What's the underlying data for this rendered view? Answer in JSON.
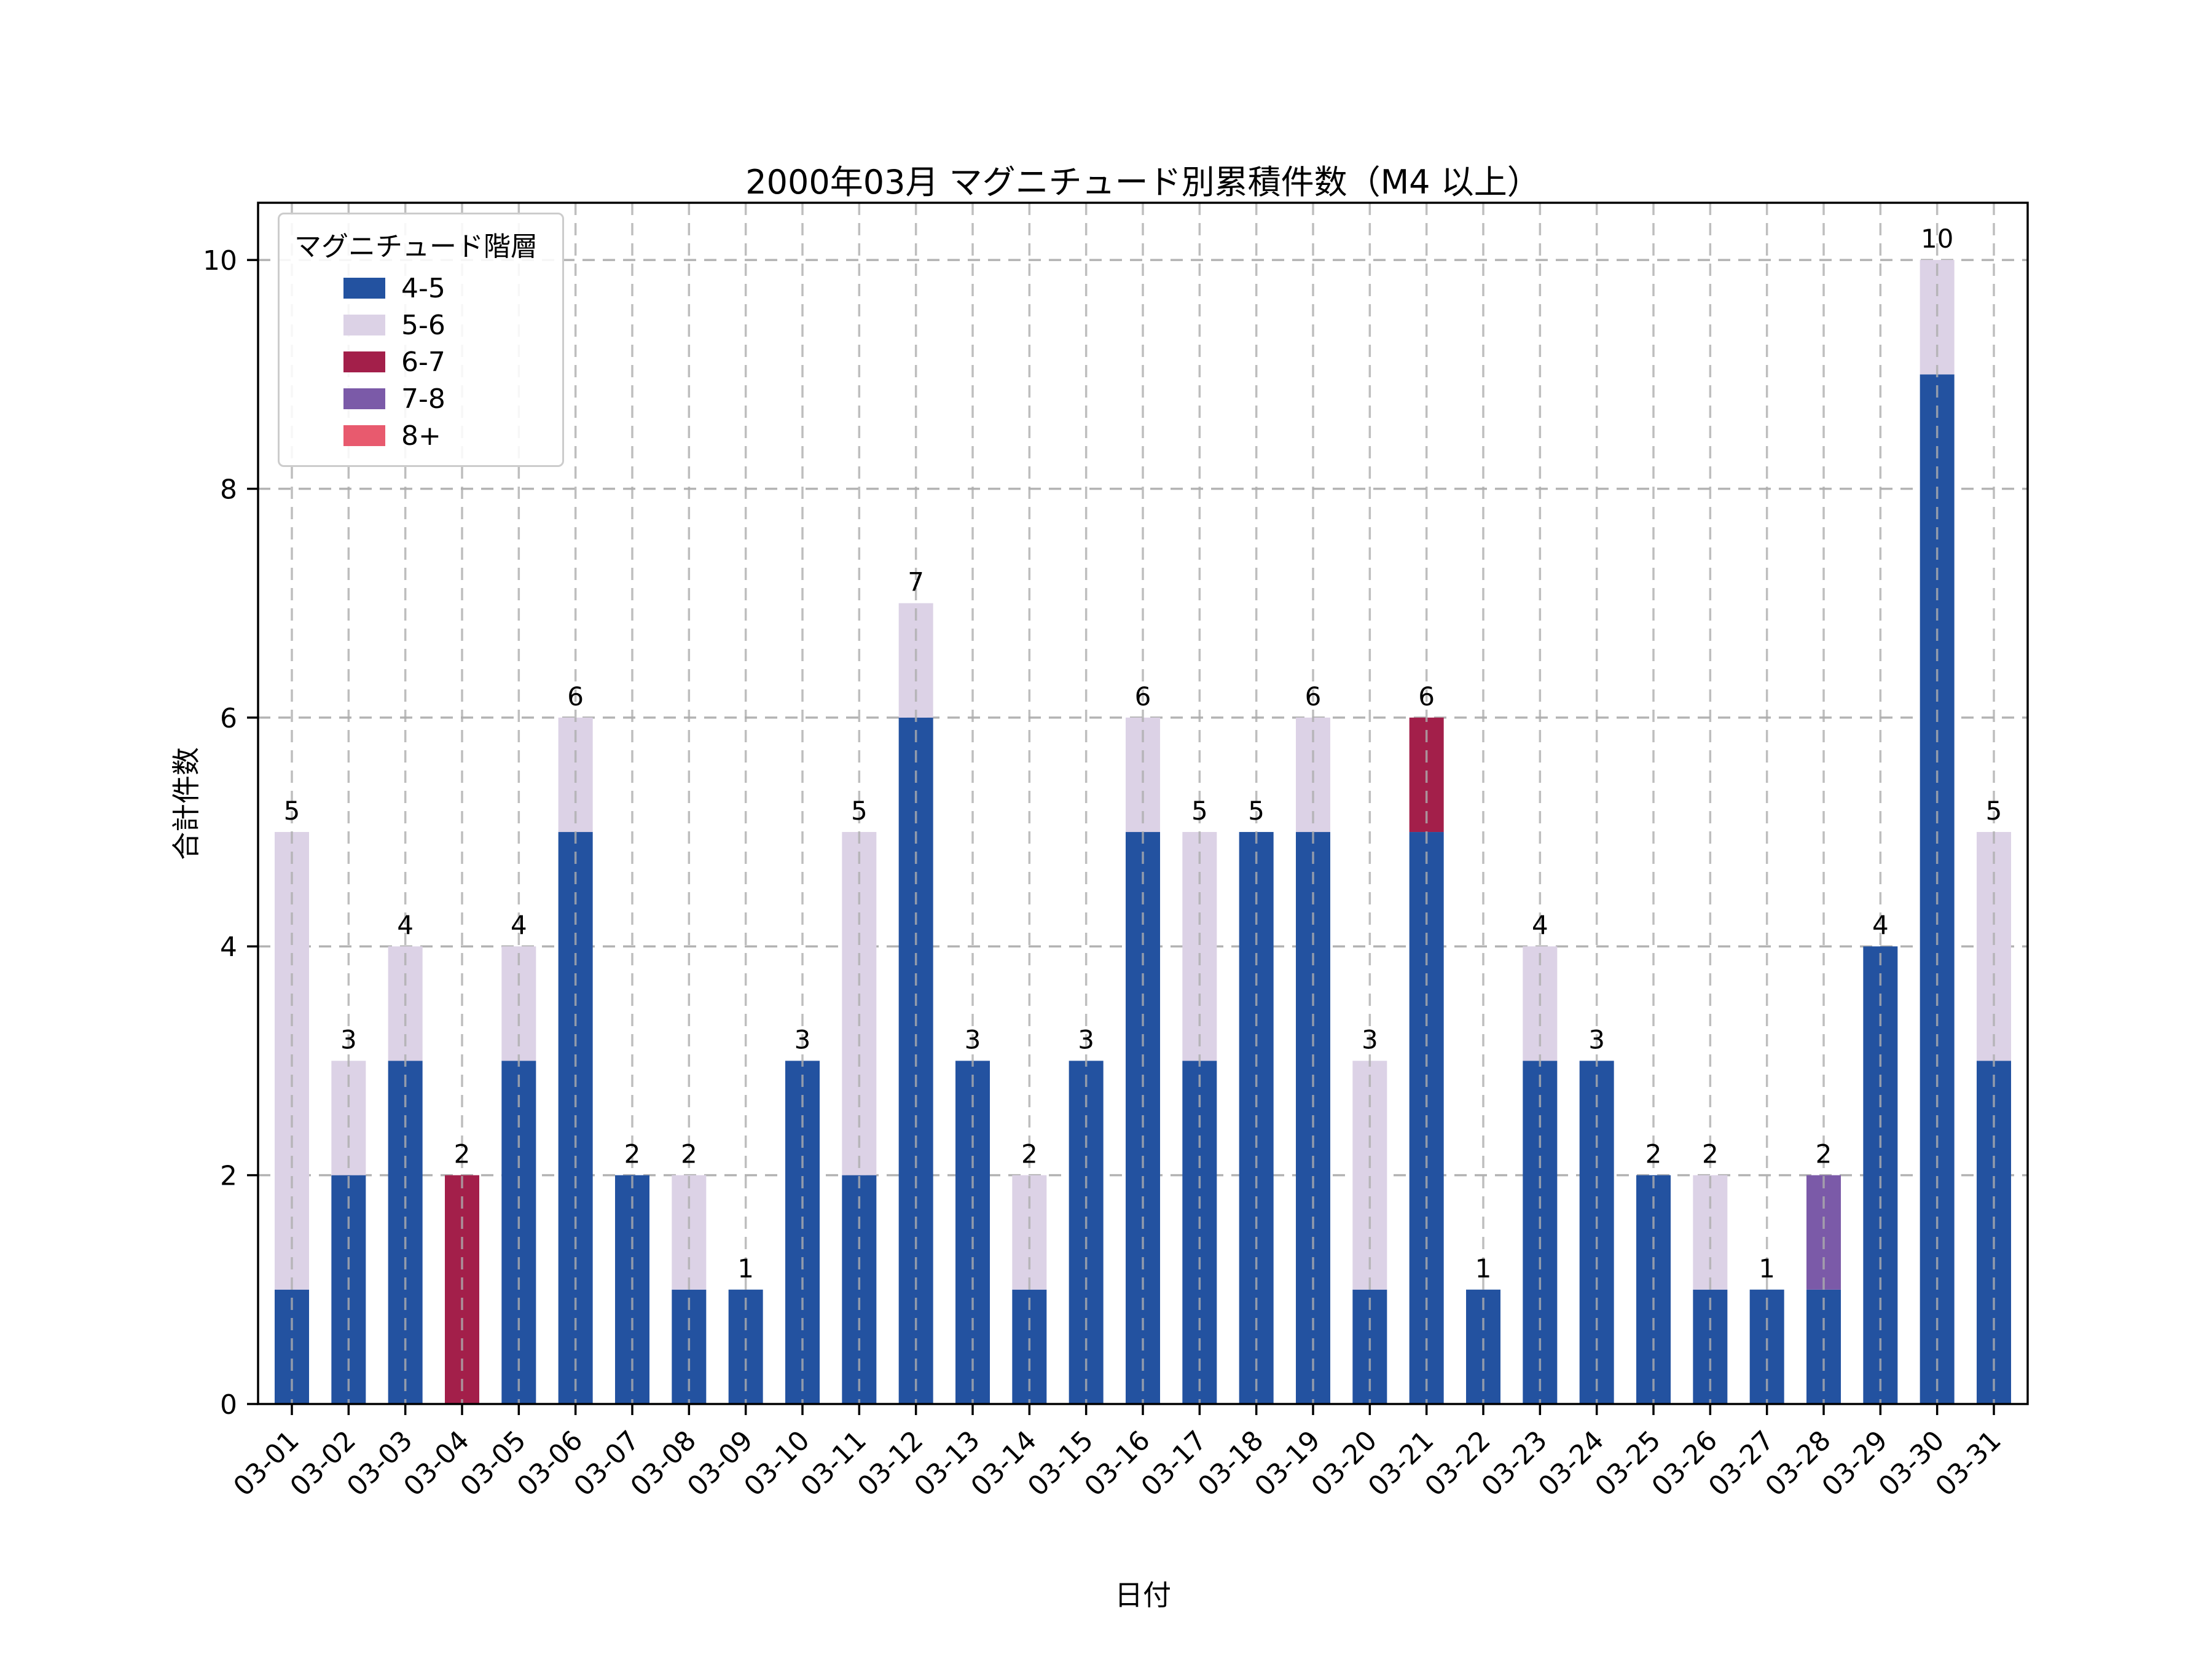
{
  "chart_data": {
    "type": "bar",
    "stacked": true,
    "title": "2000年03月 マグニチュード別累積件数（M4 以上）",
    "xlabel": "日付",
    "ylabel": "合計件数",
    "ylim": [
      0,
      10.5
    ],
    "yticks": [
      0,
      2,
      4,
      6,
      8,
      10
    ],
    "grid": true,
    "legend_title": "マグニチュード階層",
    "legend_position": "upper left",
    "categories": [
      "03-01",
      "03-02",
      "03-03",
      "03-04",
      "03-05",
      "03-06",
      "03-07",
      "03-08",
      "03-09",
      "03-10",
      "03-11",
      "03-12",
      "03-13",
      "03-14",
      "03-15",
      "03-16",
      "03-17",
      "03-18",
      "03-19",
      "03-20",
      "03-21",
      "03-22",
      "03-23",
      "03-24",
      "03-25",
      "03-26",
      "03-27",
      "03-28",
      "03-29",
      "03-30",
      "03-31"
    ],
    "series": [
      {
        "name": "4-5",
        "color": "#2352A0",
        "values": [
          1,
          2,
          3,
          0,
          3,
          5,
          2,
          1,
          1,
          3,
          2,
          6,
          3,
          1,
          3,
          5,
          3,
          5,
          5,
          1,
          5,
          1,
          3,
          3,
          2,
          1,
          1,
          1,
          4,
          9,
          3
        ]
      },
      {
        "name": "5-6",
        "color": "#DCD2E6",
        "values": [
          4,
          1,
          1,
          0,
          1,
          1,
          0,
          1,
          0,
          0,
          3,
          1,
          0,
          1,
          0,
          1,
          2,
          0,
          1,
          2,
          0,
          0,
          1,
          0,
          0,
          1,
          0,
          0,
          0,
          1,
          2
        ]
      },
      {
        "name": "6-7",
        "color": "#A31F4A",
        "values": [
          0,
          0,
          0,
          2,
          0,
          0,
          0,
          0,
          0,
          0,
          0,
          0,
          0,
          0,
          0,
          0,
          0,
          0,
          0,
          0,
          1,
          0,
          0,
          0,
          0,
          0,
          0,
          0,
          0,
          0,
          0
        ]
      },
      {
        "name": "7-8",
        "color": "#7B5AA8",
        "values": [
          0,
          0,
          0,
          0,
          0,
          0,
          0,
          0,
          0,
          0,
          0,
          0,
          0,
          0,
          0,
          0,
          0,
          0,
          0,
          0,
          0,
          0,
          0,
          0,
          0,
          0,
          0,
          1,
          0,
          0,
          0
        ]
      },
      {
        "name": "8+",
        "color": "#E85A6E",
        "values": [
          0,
          0,
          0,
          0,
          0,
          0,
          0,
          0,
          0,
          0,
          0,
          0,
          0,
          0,
          0,
          0,
          0,
          0,
          0,
          0,
          0,
          0,
          0,
          0,
          0,
          0,
          0,
          0,
          0,
          0,
          0
        ]
      }
    ],
    "totals": [
      5,
      3,
      4,
      2,
      4,
      6,
      2,
      2,
      1,
      3,
      5,
      7,
      3,
      2,
      3,
      6,
      5,
      5,
      6,
      3,
      6,
      1,
      4,
      3,
      2,
      2,
      1,
      2,
      4,
      10,
      5
    ]
  },
  "colors": {
    "background": "#ffffff",
    "grid": "#b3b3b3",
    "spine": "#000000",
    "text": "#000000"
  }
}
